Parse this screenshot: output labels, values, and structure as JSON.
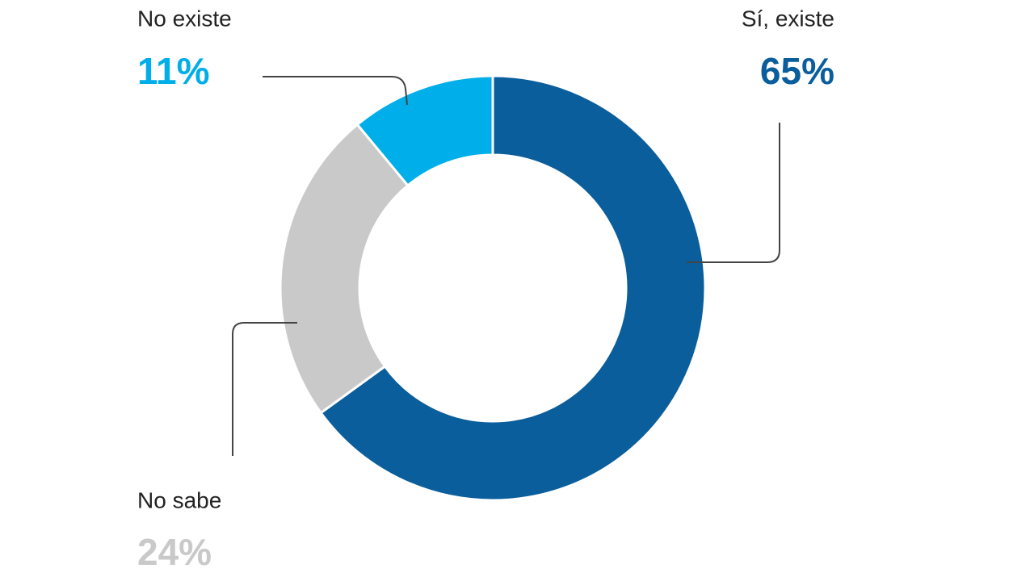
{
  "chart_data": {
    "type": "donut",
    "categories": [
      "Sí, existe",
      "No sabe",
      "No existe"
    ],
    "values": [
      65,
      24,
      11
    ],
    "value_labels": [
      "65%",
      "24%",
      "11%"
    ],
    "colors": [
      "#0a5e9c",
      "#c9c9c9",
      "#00aee9"
    ]
  }
}
